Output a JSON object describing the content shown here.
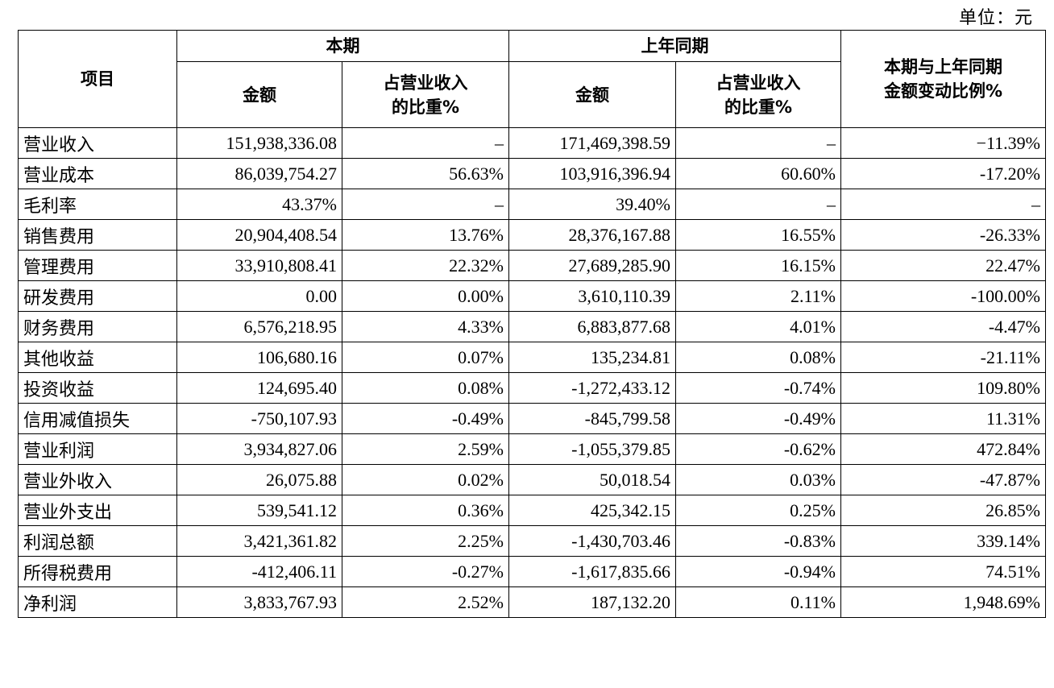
{
  "unit_label": "单位：元",
  "header": {
    "item": "项目",
    "current_period": "本期",
    "prior_period": "上年同期",
    "change": "本期与上年同期\n金额变动比例%",
    "amount": "金额",
    "ratio": "占营业收入\n的比重%"
  },
  "rows": [
    {
      "item": "营业收入",
      "current_amount": "151,938,336.08",
      "current_ratio": "–",
      "prior_amount": "171,469,398.59",
      "prior_ratio": "–",
      "change": "−11.39%"
    },
    {
      "item": "营业成本",
      "current_amount": "86,039,754.27",
      "current_ratio": "56.63%",
      "prior_amount": "103,916,396.94",
      "prior_ratio": "60.60%",
      "change": "-17.20%"
    },
    {
      "item": "毛利率",
      "current_amount": "43.37%",
      "current_ratio": "–",
      "prior_amount": "39.40%",
      "prior_ratio": "–",
      "change": "–"
    },
    {
      "item": "销售费用",
      "current_amount": "20,904,408.54",
      "current_ratio": "13.76%",
      "prior_amount": "28,376,167.88",
      "prior_ratio": "16.55%",
      "change": "-26.33%"
    },
    {
      "item": "管理费用",
      "current_amount": "33,910,808.41",
      "current_ratio": "22.32%",
      "prior_amount": "27,689,285.90",
      "prior_ratio": "16.15%",
      "change": "22.47%"
    },
    {
      "item": "研发费用",
      "current_amount": "0.00",
      "current_ratio": "0.00%",
      "prior_amount": "3,610,110.39",
      "prior_ratio": "2.11%",
      "change": "-100.00%"
    },
    {
      "item": "财务费用",
      "current_amount": "6,576,218.95",
      "current_ratio": "4.33%",
      "prior_amount": "6,883,877.68",
      "prior_ratio": "4.01%",
      "change": "-4.47%"
    },
    {
      "item": "其他收益",
      "current_amount": "106,680.16",
      "current_ratio": "0.07%",
      "prior_amount": "135,234.81",
      "prior_ratio": "0.08%",
      "change": "-21.11%"
    },
    {
      "item": "投资收益",
      "current_amount": "124,695.40",
      "current_ratio": "0.08%",
      "prior_amount": "-1,272,433.12",
      "prior_ratio": "-0.74%",
      "change": "109.80%"
    },
    {
      "item": "信用减值损失",
      "current_amount": "-750,107.93",
      "current_ratio": "-0.49%",
      "prior_amount": "-845,799.58",
      "prior_ratio": "-0.49%",
      "change": "11.31%"
    },
    {
      "item": "营业利润",
      "current_amount": "3,934,827.06",
      "current_ratio": "2.59%",
      "prior_amount": "-1,055,379.85",
      "prior_ratio": "-0.62%",
      "change": "472.84%"
    },
    {
      "item": "营业外收入",
      "current_amount": "26,075.88",
      "current_ratio": "0.02%",
      "prior_amount": "50,018.54",
      "prior_ratio": "0.03%",
      "change": "-47.87%"
    },
    {
      "item": "营业外支出",
      "current_amount": "539,541.12",
      "current_ratio": "0.36%",
      "prior_amount": "425,342.15",
      "prior_ratio": "0.25%",
      "change": "26.85%"
    },
    {
      "item": "利润总额",
      "current_amount": "3,421,361.82",
      "current_ratio": "2.25%",
      "prior_amount": "-1,430,703.46",
      "prior_ratio": "-0.83%",
      "change": "339.14%"
    },
    {
      "item": "所得税费用",
      "current_amount": "-412,406.11",
      "current_ratio": "-0.27%",
      "prior_amount": "-1,617,835.66",
      "prior_ratio": "-0.94%",
      "change": "74.51%"
    },
    {
      "item": "净利润",
      "current_amount": "3,833,767.93",
      "current_ratio": "2.52%",
      "prior_amount": "187,132.20",
      "prior_ratio": "0.11%",
      "change": "1,948.69%"
    }
  ]
}
